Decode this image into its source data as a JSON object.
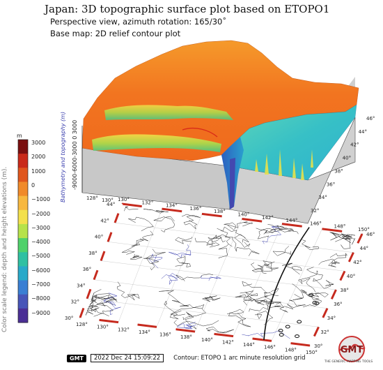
{
  "title": "Japan: 3D topographic surface plot based on ETOPO1",
  "subtitle": "Perspective view, azimuth rotation: 165/30˚",
  "basemap": "Base map: 2D relief contour plot",
  "legend": {
    "title": "Color scale legend: depth and height elevations (m).",
    "unit": "m",
    "labels": [
      "3000",
      "2000",
      "1000",
      "0",
      "−1000",
      "−2000",
      "−3000",
      "−4000",
      "−5000",
      "−6000",
      "−7000",
      "−8000",
      "−9000"
    ],
    "colors": [
      "#7a0f0f",
      "#c92a1a",
      "#e0561d",
      "#f08a2a",
      "#f7b840",
      "#f3e04c",
      "#b6e24a",
      "#4fd16a",
      "#2fc0a2",
      "#28a9c9",
      "#3a7fd3",
      "#4755b8",
      "#4b2f95"
    ]
  },
  "surface": {
    "z_title": "Bathymetry and topography (m)",
    "z_ticks": "-9000-6000-3000   0   3000",
    "left_lon_ticks": [
      "128°",
      "130°"
    ],
    "right_lat_ticks": [
      "32°",
      "34°",
      "36°",
      "38°",
      "40°",
      "42°",
      "44°",
      "46°"
    ]
  },
  "base_map": {
    "bottom_lon_ticks": [
      "128°",
      "130°",
      "132°",
      "134°",
      "136°",
      "138°",
      "140°",
      "142°",
      "144°",
      "146°",
      "148°",
      "150°"
    ],
    "top_lon_ticks": [
      "130°",
      "132°",
      "134°",
      "136°",
      "138°",
      "140°",
      "142°",
      "144°",
      "146°",
      "148°",
      "150°"
    ],
    "left_lat_ticks": [
      "30°",
      "32°",
      "34°",
      "36°",
      "38°",
      "40°",
      "42°",
      "44°"
    ],
    "right_lat_ticks": [
      "30°",
      "32°",
      "34°",
      "36°",
      "38°",
      "40°",
      "42°",
      "44°",
      "46°"
    ]
  },
  "footer": {
    "gmt": "GMT",
    "timestamp": "2022 Dec 24 15:09:22",
    "contour": "Contour: ETOPO 1 arc minute resolution grid",
    "logo_caption": "THE GENERIC MAPPING TOOLS",
    "logo_text": "GMT"
  }
}
